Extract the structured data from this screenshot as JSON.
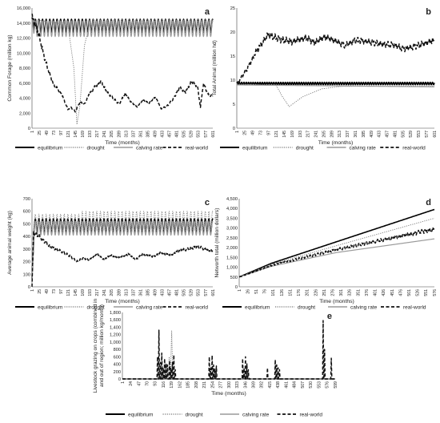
{
  "figure": {
    "legend_labels": [
      "equilibrium",
      "drought",
      "calving rate",
      "real-world"
    ]
  },
  "chart_data": [
    {
      "id": "a",
      "panel_label": "a",
      "type": "line",
      "xlabel": "Time (months)",
      "ylabel": "Common Forage (million kg)",
      "ylim": [
        0,
        16000
      ],
      "yticks": [
        "0",
        "2,000",
        "4,000",
        "6,000",
        "8,000",
        "10,000",
        "12,000",
        "14,000",
        "16,000"
      ],
      "xticks": [
        "1",
        "25",
        "49",
        "73",
        "97",
        "121",
        "145",
        "169",
        "193",
        "217",
        "241",
        "265",
        "289",
        "313",
        "337",
        "361",
        "385",
        "409",
        "433",
        "457",
        "481",
        "505",
        "529",
        "553",
        "577",
        "601"
      ],
      "xlim": [
        1,
        601
      ],
      "legend": "bottom",
      "series": [
        {
          "name": "equilibrium",
          "style": "solid-black",
          "pattern": "oscillate",
          "lo": 12800,
          "hi": 14500,
          "period": 12,
          "start": 14800
        },
        {
          "name": "drought",
          "style": "dotted",
          "points": [
            [
              1,
              14500
            ],
            [
              120,
              13800
            ],
            [
              140,
              8000
            ],
            [
              150,
              500
            ],
            [
              160,
              3000
            ],
            [
              175,
              11000
            ],
            [
              190,
              13500
            ],
            [
              601,
              13700
            ]
          ],
          "osc_after": 190,
          "lo": 12800,
          "hi": 14500
        },
        {
          "name": "calving rate",
          "style": "solid-gray",
          "pattern": "oscillate",
          "lo": 12200,
          "hi": 14300,
          "period": 12,
          "start": 14600
        },
        {
          "name": "real-world",
          "style": "dashed",
          "points": [
            [
              1,
              14800
            ],
            [
              20,
              13000
            ],
            [
              45,
              9000
            ],
            [
              70,
              6000
            ],
            [
              100,
              4500
            ],
            [
              120,
              2500
            ],
            [
              130,
              2800
            ],
            [
              145,
              2200
            ],
            [
              160,
              3500
            ],
            [
              175,
              3200
            ],
            [
              190,
              4500
            ],
            [
              210,
              5500
            ],
            [
              230,
              6200
            ],
            [
              250,
              4800
            ],
            [
              270,
              4000
            ],
            [
              290,
              3200
            ],
            [
              310,
              4600
            ],
            [
              330,
              3500
            ],
            [
              350,
              2800
            ],
            [
              370,
              3800
            ],
            [
              390,
              3300
            ],
            [
              410,
              4200
            ],
            [
              430,
              2600
            ],
            [
              450,
              3000
            ],
            [
              470,
              3900
            ],
            [
              490,
              5400
            ],
            [
              510,
              4800
            ],
            [
              530,
              6200
            ],
            [
              550,
              5600
            ],
            [
              560,
              2800
            ],
            [
              570,
              6000
            ],
            [
              585,
              4500
            ],
            [
              601,
              4200
            ]
          ]
        }
      ]
    },
    {
      "id": "b",
      "panel_label": "b",
      "type": "line",
      "xlabel": "Time (months)",
      "ylabel": "Total Animal (million hd)",
      "ylim": [
        0,
        25
      ],
      "yticks": [
        "0",
        "5",
        "10",
        "15",
        "20",
        "25"
      ],
      "xticks": [
        "1",
        "25",
        "49",
        "73",
        "97",
        "121",
        "145",
        "169",
        "193",
        "217",
        "241",
        "265",
        "289",
        "313",
        "337",
        "361",
        "385",
        "409",
        "433",
        "457",
        "481",
        "505",
        "529",
        "553",
        "577",
        "601"
      ],
      "xlim": [
        1,
        601
      ],
      "legend": "bottom",
      "series": [
        {
          "name": "equilibrium",
          "style": "solid-black",
          "points": [
            [
              1,
              9.3
            ],
            [
              601,
              9.3
            ]
          ],
          "jitter": 0.25
        },
        {
          "name": "drought",
          "style": "dotted",
          "points": [
            [
              1,
              9.2
            ],
            [
              120,
              9.0
            ],
            [
              140,
              6.5
            ],
            [
              160,
              4.5
            ],
            [
              200,
              6.5
            ],
            [
              260,
              8.2
            ],
            [
              320,
              8.7
            ],
            [
              601,
              8.8
            ]
          ]
        },
        {
          "name": "calving rate",
          "style": "solid-gray",
          "points": [
            [
              1,
              9.0
            ],
            [
              601,
              8.6
            ]
          ]
        },
        {
          "name": "real-world",
          "style": "dashed",
          "points": [
            [
              1,
              9.2
            ],
            [
              30,
              12
            ],
            [
              60,
              16
            ],
            [
              97,
              19.5
            ],
            [
              130,
              18.5
            ],
            [
              170,
              18.0
            ],
            [
              210,
              18.8
            ],
            [
              240,
              17.8
            ],
            [
              265,
              19.0
            ],
            [
              290,
              18.5
            ],
            [
              330,
              17.2
            ],
            [
              361,
              18.3
            ],
            [
              400,
              18.0
            ],
            [
              440,
              17.5
            ],
            [
              480,
              17.3
            ],
            [
              505,
              16.5
            ],
            [
              530,
              16.8
            ],
            [
              560,
              17.4
            ],
            [
              601,
              18.3
            ]
          ]
        }
      ]
    },
    {
      "id": "c",
      "panel_label": "c",
      "type": "line",
      "xlabel": "Time (months)",
      "ylabel": "Average animal weight (kg)",
      "ylim": [
        0,
        700
      ],
      "yticks": [
        "0",
        "100",
        "200",
        "300",
        "400",
        "500",
        "600",
        "700"
      ],
      "xticks": [
        "1",
        "25",
        "49",
        "73",
        "97",
        "121",
        "145",
        "169",
        "193",
        "217",
        "241",
        "265",
        "289",
        "313",
        "337",
        "361",
        "385",
        "409",
        "433",
        "457",
        "481",
        "505",
        "529",
        "553",
        "577",
        "601"
      ],
      "xlim": [
        1,
        601
      ],
      "legend": "bottom",
      "series": [
        {
          "name": "equilibrium",
          "style": "solid-black",
          "pattern": "oscillate",
          "lo": 430,
          "hi": 540,
          "period": 12,
          "start": 0
        },
        {
          "name": "drought",
          "style": "dotted",
          "pattern": "oscillate",
          "lo": 450,
          "hi": 600,
          "period": 12,
          "start": 0,
          "from": 160
        },
        {
          "name": "calving rate",
          "style": "solid-gray",
          "pattern": "oscillate",
          "lo": 410,
          "hi": 520,
          "period": 12,
          "start": 0
        },
        {
          "name": "real-world",
          "style": "dashed",
          "points": [
            [
              1,
              0
            ],
            [
              6,
              430
            ],
            [
              25,
              400
            ],
            [
              60,
              320
            ],
            [
              100,
              280
            ],
            [
              130,
              240
            ],
            [
              150,
              200
            ],
            [
              170,
              230
            ],
            [
              190,
              210
            ],
            [
              215,
              260
            ],
            [
              240,
              220
            ],
            [
              265,
              250
            ],
            [
              290,
              230
            ],
            [
              320,
              260
            ],
            [
              345,
              220
            ],
            [
              370,
              260
            ],
            [
              400,
              240
            ],
            [
              430,
              270
            ],
            [
              460,
              250
            ],
            [
              490,
              290
            ],
            [
              520,
              300
            ],
            [
              550,
              320
            ],
            [
              575,
              300
            ],
            [
              601,
              280
            ]
          ]
        }
      ]
    },
    {
      "id": "d",
      "panel_label": "d",
      "type": "line",
      "xlabel": "Time (months)",
      "ylabel": "Networth total (million dollars)",
      "ylim": [
        0,
        4500
      ],
      "yticks": [
        "0",
        "500",
        "1,000",
        "1,500",
        "2,000",
        "2,500",
        "3,000",
        "3,500",
        "4,000",
        "4,500"
      ],
      "xticks": [
        "1",
        "26",
        "51",
        "76",
        "101",
        "126",
        "151",
        "176",
        "201",
        "226",
        "251",
        "276",
        "301",
        "326",
        "351",
        "376",
        "401",
        "426",
        "451",
        "476",
        "501",
        "526",
        "551",
        "576"
      ],
      "xlim": [
        1,
        601
      ],
      "legend": "bottom",
      "series": [
        {
          "name": "equilibrium",
          "style": "solid-black",
          "points": [
            [
              1,
              500
            ],
            [
              100,
              1200
            ],
            [
              300,
              2300
            ],
            [
              601,
              3950
            ]
          ]
        },
        {
          "name": "drought",
          "style": "dotted",
          "points": [
            [
              1,
              500
            ],
            [
              100,
              1150
            ],
            [
              300,
              2100
            ],
            [
              601,
              3500
            ]
          ]
        },
        {
          "name": "calving rate",
          "style": "solid-gray",
          "points": [
            [
              1,
              500
            ],
            [
              100,
              1050
            ],
            [
              300,
              1750
            ],
            [
              601,
              2450
            ]
          ]
        },
        {
          "name": "real-world",
          "style": "dashed",
          "points": [
            [
              1,
              500
            ],
            [
              100,
              1100
            ],
            [
              300,
              1900
            ],
            [
              601,
              2950
            ]
          ]
        }
      ]
    },
    {
      "id": "e",
      "panel_label": "e",
      "type": "line",
      "xlabel": "Time (months)",
      "ylabel": "Livestock grazing on crops (combined in and out of region; million kg/month)",
      "ylabel_lines": [
        "Livestock grazing on crops (combined in",
        "and out of region; million kg/month)"
      ],
      "ylim": [
        0,
        1800
      ],
      "yticks": [
        "0",
        "200",
        "400",
        "600",
        "800",
        "1,000",
        "1,200",
        "1,400",
        "1,600",
        "1,800"
      ],
      "xticks": [
        "1",
        "24",
        "47",
        "70",
        "93",
        "116",
        "139",
        "162",
        "185",
        "208",
        "231",
        "254",
        "277",
        "300",
        "323",
        "346",
        "369",
        "392",
        "415",
        "438",
        "461",
        "484",
        "507",
        "530",
        "553",
        "576",
        "599"
      ],
      "xlim": [
        1,
        601
      ],
      "legend": "bottom",
      "series": [
        {
          "name": "equilibrium",
          "style": "solid-black",
          "points": [
            [
              1,
              0
            ],
            [
              601,
              0
            ]
          ]
        },
        {
          "name": "drought",
          "style": "dotted",
          "points": [
            [
              1,
              0
            ],
            [
              130,
              0
            ],
            [
              133,
              600
            ],
            [
              136,
              0
            ],
            [
              140,
              1300
            ],
            [
              143,
              0
            ],
            [
              601,
              0
            ]
          ]
        },
        {
          "name": "calving rate",
          "style": "solid-gray",
          "points": [
            [
              1,
              0
            ],
            [
              601,
              0
            ]
          ]
        },
        {
          "name": "real-world",
          "style": "dashed",
          "spikes": [
            [
              100,
              600
            ],
            [
              104,
              1320
            ],
            [
              108,
              450
            ],
            [
              112,
              700
            ],
            [
              116,
              300
            ],
            [
              120,
              550
            ],
            [
              124,
              420
            ],
            [
              128,
              380
            ],
            [
              134,
              500
            ],
            [
              138,
              300
            ],
            [
              142,
              450
            ],
            [
              146,
              650
            ],
            [
              150,
              250
            ],
            [
              246,
              600
            ],
            [
              250,
              300
            ],
            [
              254,
              640
            ],
            [
              258,
              380
            ],
            [
              262,
              280
            ],
            [
              266,
              350
            ],
            [
              340,
              550
            ],
            [
              344,
              300
            ],
            [
              348,
              600
            ],
            [
              352,
              420
            ],
            [
              356,
              250
            ],
            [
              410,
              300
            ],
            [
              432,
              520
            ],
            [
              436,
              380
            ],
            [
              440,
              300
            ],
            [
              444,
              250
            ],
            [
              567,
              1580
            ],
            [
              571,
              800
            ],
            [
              590,
              560
            ]
          ]
        }
      ]
    }
  ]
}
